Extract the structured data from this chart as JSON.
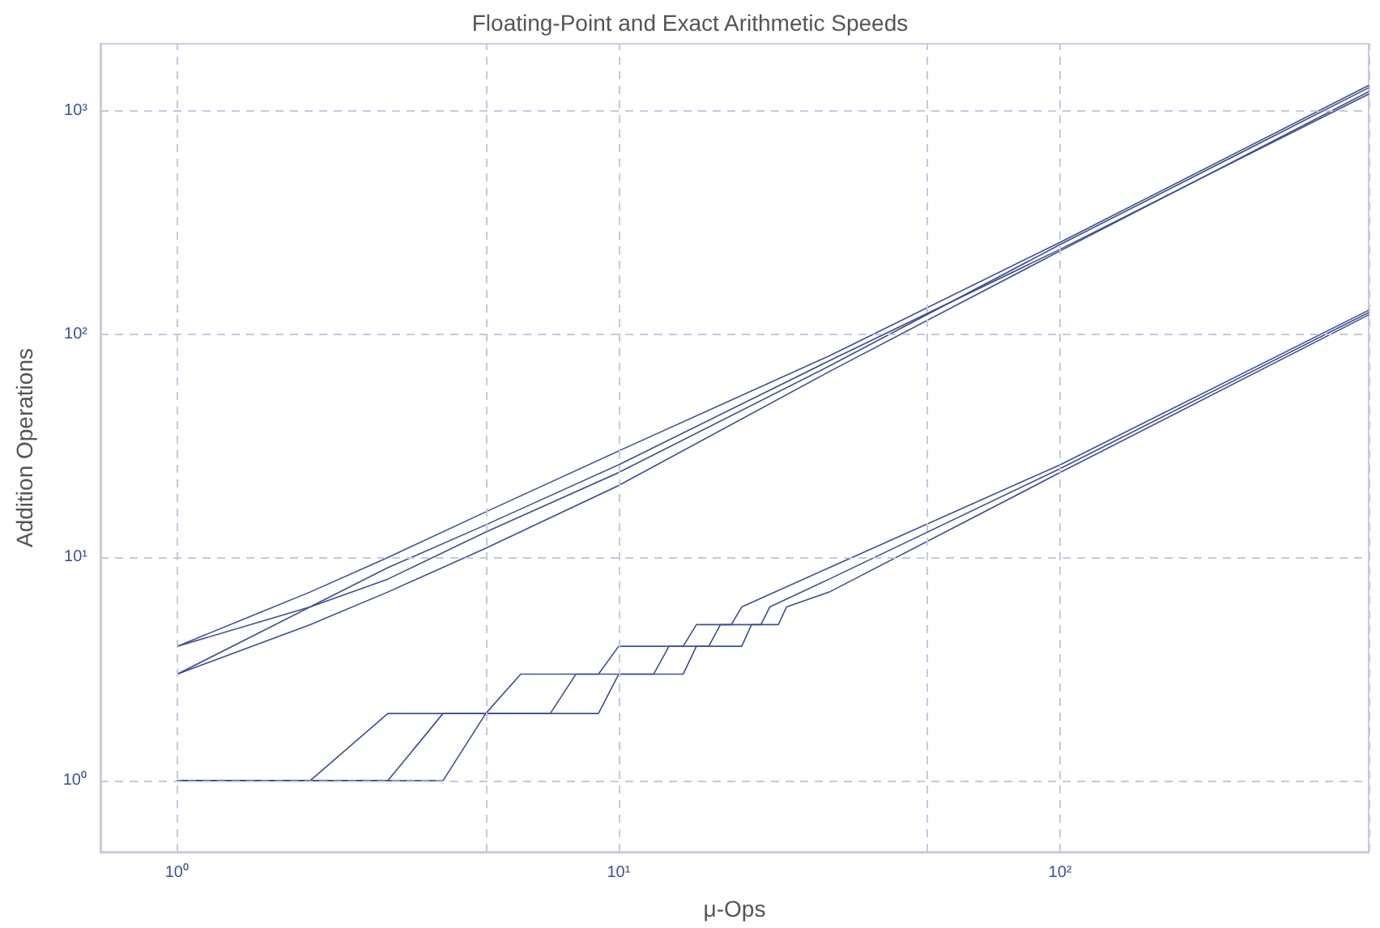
{
  "chart_data": {
    "type": "line",
    "title": "Floating-Point and Exact Arithmetic Speeds",
    "xlabel": "μ-Ops",
    "ylabel": "Addition Operations",
    "log": "xy",
    "grid": true,
    "marker": "none",
    "line_style": "solid",
    "xlim": [
      0.67,
      500
    ],
    "ylim": [
      0.48,
      2000
    ],
    "xticks": [
      {
        "value": 1,
        "label": "10⁰"
      },
      {
        "value": 5,
        "label": null
      },
      {
        "value": 10,
        "label": "10¹"
      },
      {
        "value": 50,
        "label": null
      },
      {
        "value": 100,
        "label": "10²"
      },
      {
        "value": 500,
        "label": null
      }
    ],
    "yticks": [
      {
        "value": 1,
        "label": "10⁰"
      },
      {
        "value": 10,
        "label": "10¹"
      },
      {
        "value": 100,
        "label": "10²"
      },
      {
        "value": 1000,
        "label": "10³"
      }
    ],
    "series": [
      {
        "color": "#3d4f94",
        "x": [
          1,
          2,
          3,
          5,
          10,
          30,
          100,
          500
        ],
        "values": [
          4,
          7,
          10,
          16,
          30,
          80,
          258,
          1300
        ]
      },
      {
        "color": "#3d4f94",
        "x": [
          1,
          2,
          3,
          5,
          10,
          30,
          100,
          500
        ],
        "values": [
          4,
          6,
          9,
          14,
          26,
          76,
          240,
          1190
        ]
      },
      {
        "color": "#3d4f94",
        "x": [
          1,
          2,
          3,
          5,
          10,
          30,
          100,
          500
        ],
        "values": [
          3,
          6,
          8,
          13,
          24,
          72,
          252,
          1270
        ]
      },
      {
        "color": "#3d4f94",
        "x": [
          1,
          2,
          3,
          5,
          10,
          30,
          100,
          500
        ],
        "values": [
          3,
          5,
          7,
          11,
          21,
          68,
          236,
          1220
        ]
      },
      {
        "color": "#3d4f94",
        "x": [
          1,
          2,
          3,
          5,
          6,
          9,
          10,
          14,
          15,
          18,
          19,
          30,
          100,
          500
        ],
        "values": [
          1,
          1,
          2,
          2,
          3,
          3,
          4,
          4,
          5,
          5,
          6,
          9,
          26,
          128
        ]
      },
      {
        "color": "#3d4f94",
        "x": [
          1,
          3,
          4,
          7,
          8,
          12,
          13,
          16,
          17,
          21,
          22,
          30,
          100,
          500
        ],
        "values": [
          1,
          1,
          2,
          2,
          3,
          3,
          4,
          4,
          5,
          5,
          6,
          8,
          25,
          125
        ]
      },
      {
        "color": "#3d4f94",
        "x": [
          1,
          4,
          5,
          9,
          10,
          14,
          15,
          19,
          20,
          23,
          24,
          30,
          100,
          500
        ],
        "values": [
          1,
          1,
          2,
          2,
          3,
          3,
          4,
          4,
          5,
          5,
          6,
          7,
          24,
          122
        ]
      }
    ]
  }
}
